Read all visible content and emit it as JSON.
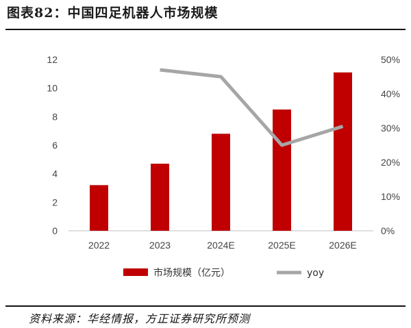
{
  "header": {
    "title": "图表82：中国四足机器人市场规模"
  },
  "footer": {
    "source": "资料来源：华经情报，方正证券研究所预测"
  },
  "colors": {
    "bar": "#c00000",
    "line": "#a6a6a6",
    "axis": "#bfbfbf"
  },
  "chart_data": {
    "type": "bar",
    "categories": [
      "2022",
      "2023",
      "2024E",
      "2025E",
      "2026E"
    ],
    "series": [
      {
        "name": "市场规模（亿元）",
        "type": "bar",
        "axis": "left",
        "values": [
          3.2,
          4.7,
          6.8,
          8.5,
          11.1
        ]
      },
      {
        "name": "yoy",
        "type": "line",
        "axis": "right",
        "values": [
          null,
          47,
          45,
          25,
          30.5
        ]
      }
    ],
    "ylim_left": [
      0,
      12
    ],
    "yticks_left": [
      "0",
      "2",
      "4",
      "6",
      "8",
      "10",
      "12"
    ],
    "ylim_right": [
      0,
      50
    ],
    "yticks_right": [
      "0%",
      "10%",
      "20%",
      "30%",
      "40%",
      "50%"
    ],
    "grid": false,
    "legend": "bottom"
  }
}
